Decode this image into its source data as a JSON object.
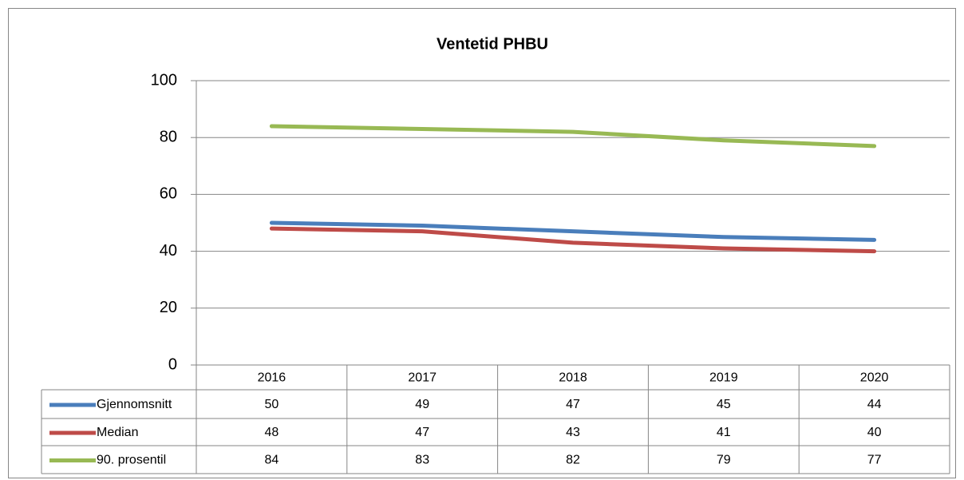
{
  "chart_data": {
    "type": "line",
    "title": "Ventetid PHBU",
    "categories": [
      "2016",
      "2017",
      "2018",
      "2019",
      "2020"
    ],
    "series": [
      {
        "name": "Gjennomsnitt",
        "color": "#4a7ebb",
        "values": [
          50,
          49,
          47,
          45,
          44
        ]
      },
      {
        "name": "Median",
        "color": "#be4b48",
        "values": [
          48,
          47,
          43,
          41,
          40
        ]
      },
      {
        "name": "90. prosentil",
        "color": "#98b954",
        "values": [
          84,
          83,
          82,
          79,
          77
        ]
      }
    ],
    "ylim": [
      0,
      100
    ],
    "yticks": [
      0,
      20,
      40,
      60,
      80,
      100
    ],
    "grid": true
  }
}
